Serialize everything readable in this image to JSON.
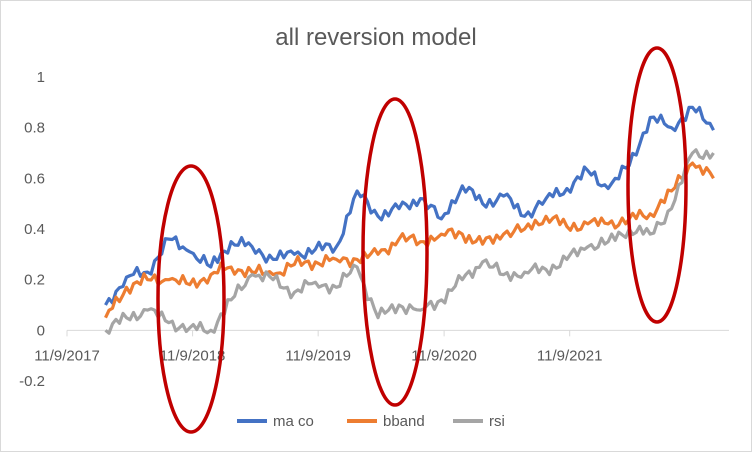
{
  "chart_data": {
    "type": "line",
    "title": "all reversion model",
    "xlabel": "",
    "ylabel": "",
    "x_ticks": [
      "11/9/2017",
      "11/9/2018",
      "11/9/2019",
      "11/9/2020",
      "11/9/2021"
    ],
    "ylim": [
      -0.2,
      1
    ],
    "y_ticks": [
      "-0.2",
      "0",
      "0.2",
      "0.4",
      "0.6",
      "0.8",
      "1"
    ],
    "grid": false,
    "legend_position": "bottom",
    "x": [
      "2018-03-01",
      "2018-05-01",
      "2018-07-01",
      "2018-09-01",
      "2018-11-01",
      "2019-01-01",
      "2019-03-01",
      "2019-05-01",
      "2019-07-01",
      "2019-09-01",
      "2019-11-01",
      "2020-01-01",
      "2020-03-01",
      "2020-05-01",
      "2020-07-01",
      "2020-09-01",
      "2020-11-01",
      "2021-01-01",
      "2021-03-01",
      "2021-05-01",
      "2021-07-01",
      "2021-09-01",
      "2021-11-01",
      "2022-01-01",
      "2022-03-01",
      "2022-05-01",
      "2022-07-01",
      "2022-09-01",
      "2022-11-01",
      "2023-01-01"
    ],
    "series": [
      {
        "name": "ma co",
        "color": "#4472C4",
        "values": [
          0.1,
          0.21,
          0.23,
          0.36,
          0.31,
          0.25,
          0.35,
          0.33,
          0.28,
          0.3,
          0.32,
          0.33,
          0.55,
          0.45,
          0.48,
          0.52,
          0.44,
          0.57,
          0.5,
          0.53,
          0.45,
          0.52,
          0.56,
          0.63,
          0.56,
          0.65,
          0.84,
          0.8,
          0.88,
          0.79
        ]
      },
      {
        "name": "bband",
        "color": "#ED7D31",
        "values": [
          0.05,
          0.17,
          0.2,
          0.2,
          0.18,
          0.22,
          0.25,
          0.23,
          0.22,
          0.26,
          0.27,
          0.28,
          0.28,
          0.3,
          0.36,
          0.35,
          0.38,
          0.38,
          0.34,
          0.38,
          0.4,
          0.45,
          0.41,
          0.42,
          0.42,
          0.44,
          0.46,
          0.55,
          0.66,
          0.6
        ]
      },
      {
        "name": "rsi",
        "color": "#A5A5A5",
        "values": [
          0.0,
          0.05,
          0.08,
          0.03,
          0.01,
          0.0,
          0.12,
          0.22,
          0.2,
          0.15,
          0.19,
          0.17,
          0.25,
          0.05,
          0.1,
          0.08,
          0.12,
          0.2,
          0.27,
          0.22,
          0.23,
          0.24,
          0.28,
          0.33,
          0.35,
          0.4,
          0.38,
          0.48,
          0.7,
          0.7
        ]
      }
    ],
    "annotations": [
      {
        "shape": "ellipse",
        "color": "#C00000",
        "around": "2018 drawdown"
      },
      {
        "shape": "ellipse",
        "color": "#C00000",
        "around": "2020 drawdown"
      },
      {
        "shape": "ellipse",
        "color": "#C00000",
        "around": "2022 drawdown"
      }
    ]
  }
}
